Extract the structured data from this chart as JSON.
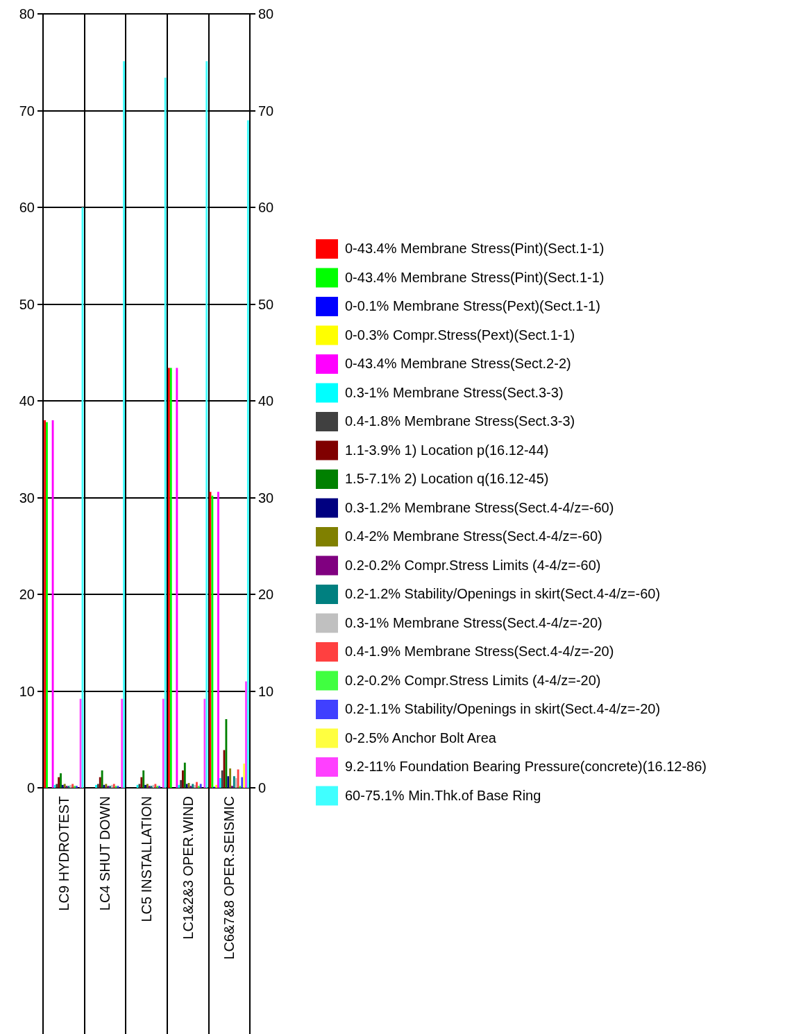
{
  "chart_data": {
    "type": "bar",
    "categories": [
      "LC9 HYDROTEST",
      "LC4 SHUT DOWN",
      "LC5 INSTALLATION",
      "LC1&2&3 OPER.WIND",
      "LC6&7&8 OPER.SEISMIC"
    ],
    "series": [
      {
        "name": "0-43.4% Membrane Stress(Pint)(Sect.1-1)",
        "color": "#ff0000",
        "values": [
          38,
          0,
          0,
          43.4,
          30.6
        ]
      },
      {
        "name": "0-43.4% Membrane Stress(Pint)(Sect.1-1)",
        "color": "#00ff00",
        "values": [
          37.8,
          0,
          0,
          43.4,
          30.2
        ]
      },
      {
        "name": "0-0.1% Membrane Stress(Pext)(Sect.1-1)",
        "color": "#0000ff",
        "values": [
          0,
          0,
          0,
          0,
          0.1
        ]
      },
      {
        "name": "0-0.3% Compr.Stress(Pext)(Sect.1-1)",
        "color": "#ffff00",
        "values": [
          0,
          0,
          0,
          0,
          0.3
        ]
      },
      {
        "name": "0-43.4% Membrane Stress(Sect.2-2)",
        "color": "#ff00ff",
        "values": [
          38,
          0,
          0,
          43.4,
          30.6
        ]
      },
      {
        "name": "0.3-1% Membrane Stress(Sect.3-3)",
        "color": "#00ffff",
        "values": [
          0.3,
          0.3,
          0.3,
          0.3,
          1
        ]
      },
      {
        "name": "0.4-1.8% Membrane Stress(Sect.3-3)",
        "color": "#404040",
        "values": [
          0.4,
          0.4,
          0.4,
          0.8,
          1.8
        ]
      },
      {
        "name": "1.1-3.9% 1) Location p(16.12-44)",
        "color": "#800000",
        "values": [
          1.1,
          1.1,
          1.1,
          1.8,
          3.9
        ]
      },
      {
        "name": "1.5-7.1% 2) Location q(16.12-45)",
        "color": "#008000",
        "values": [
          1.5,
          1.8,
          1.8,
          2.6,
          7.1
        ]
      },
      {
        "name": "0.3-1.2% Membrane Stress(Sect.4-4/z=-60)",
        "color": "#000080",
        "values": [
          0.3,
          0.3,
          0.3,
          0.4,
          1.2
        ]
      },
      {
        "name": "0.4-2% Membrane Stress(Sect.4-4/z=-60)",
        "color": "#808000",
        "values": [
          0.4,
          0.4,
          0.4,
          0.5,
          2
        ]
      },
      {
        "name": "0.2-0.2% Compr.Stress Limits (4-4/z=-60)",
        "color": "#800080",
        "values": [
          0.2,
          0.2,
          0.2,
          0.2,
          0.2
        ]
      },
      {
        "name": "0.2-1.2% Stability/Openings in skirt(Sect.4-4/z=-60)",
        "color": "#008080",
        "values": [
          0.2,
          0.2,
          0.2,
          0.4,
          1.2
        ]
      },
      {
        "name": "0.3-1% Membrane Stress(Sect.4-4/z=-20)",
        "color": "#c0c0c0",
        "values": [
          0.3,
          0.3,
          0.3,
          0.3,
          1
        ]
      },
      {
        "name": "0.4-1.9% Membrane Stress(Sect.4-4/z=-20)",
        "color": "#ff4040",
        "values": [
          0.4,
          0.4,
          0.4,
          0.6,
          1.9
        ]
      },
      {
        "name": "0.2-0.2% Compr.Stress Limits (4-4/z=-20)",
        "color": "#40ff40",
        "values": [
          0.2,
          0.2,
          0.2,
          0.2,
          0.2
        ]
      },
      {
        "name": "0.2-1.1% Stability/Openings in skirt(Sect.4-4/z=-20)",
        "color": "#4040ff",
        "values": [
          0.2,
          0.2,
          0.2,
          0.4,
          1.1
        ]
      },
      {
        "name": "0-2.5% Anchor Bolt Area",
        "color": "#ffff40",
        "values": [
          0,
          0,
          0,
          0,
          2.5
        ]
      },
      {
        "name": "9.2-11% Foundation Bearing Pressure(concrete)(16.12-86)",
        "color": "#ff40ff",
        "values": [
          9.2,
          9.2,
          9.2,
          9.2,
          11
        ]
      },
      {
        "name": "60-75.1% Min.Thk.of Base Ring",
        "color": "#40ffff",
        "values": [
          60,
          75.1,
          73.4,
          75.1,
          69
        ]
      }
    ],
    "ylim": [
      0,
      80
    ],
    "yticks": [
      0,
      10,
      20,
      30,
      40,
      50,
      60,
      70,
      80
    ],
    "y2lim": [
      0,
      80
    ],
    "y2ticks": [
      0,
      10,
      20,
      30,
      40,
      50,
      60,
      70,
      80
    ],
    "grid": true,
    "legend": "right"
  }
}
